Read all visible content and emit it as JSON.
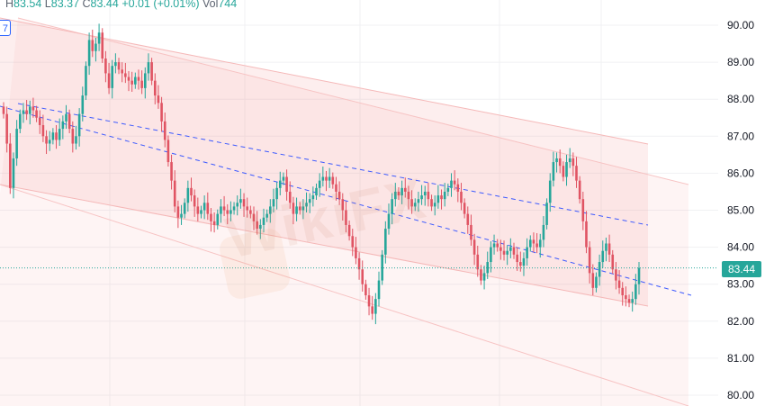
{
  "header": {
    "h_label": "H",
    "h_value": "83.54",
    "l_label": "L",
    "l_value": "83.37",
    "c_label": "C",
    "c_value": "83.44",
    "change": "+0.01 (+0.01%)",
    "vol_label": "Vol",
    "vol_value": "744"
  },
  "left_label": "7",
  "price_tag": "83.44",
  "watermark": "WikiFX",
  "colors": {
    "up": "#26a69a",
    "down": "#e05463",
    "channel_fill": "#f4a3a3",
    "trend": "#3d5afe"
  },
  "chart_data": {
    "type": "candlestick",
    "ylim": [
      79.8,
      90.5
    ],
    "yticks": [
      "80.00",
      "81.00",
      "82.00",
      "83.00",
      "84.00",
      "85.00",
      "86.00",
      "87.00",
      "88.00",
      "89.00",
      "90.00"
    ],
    "last_price": 83.44,
    "grid": true,
    "closes": [
      87.6,
      86.8,
      85.6,
      86.4,
      87.2,
      87.6,
      87.7,
      87.6,
      87.8,
      87.7,
      87.5,
      87.3,
      87.0,
      86.8,
      86.9,
      87.1,
      86.9,
      87.2,
      87.4,
      87.6,
      87.2,
      86.8,
      87.0,
      87.6,
      88.1,
      88.9,
      89.6,
      89.3,
      89.5,
      89.8,
      89.1,
      88.7,
      88.3,
      88.9,
      89.0,
      88.8,
      88.7,
      88.6,
      88.5,
      88.4,
      88.6,
      88.5,
      88.3,
      88.7,
      89.0,
      88.5,
      88.1,
      87.9,
      87.4,
      86.9,
      86.3,
      85.8,
      85.1,
      84.8,
      84.9,
      85.2,
      85.6,
      85.4,
      85.1,
      84.9,
      85.0,
      85.2,
      84.9,
      84.7,
      84.6,
      84.9,
      85.1,
      85.0,
      84.9,
      85.0,
      85.1,
      85.2,
      85.3,
      85.1,
      85.0,
      84.9,
      84.7,
      84.5,
      84.6,
      84.8,
      84.9,
      85.1,
      85.3,
      85.6,
      85.8,
      85.9,
      85.5,
      85.2,
      84.9,
      85.1,
      85.0,
      85.1,
      85.2,
      85.3,
      85.4,
      85.6,
      85.8,
      85.9,
      85.8,
      85.9,
      85.7,
      85.5,
      85.3,
      85.0,
      84.6,
      84.3,
      84.0,
      83.7,
      83.4,
      83.0,
      82.7,
      82.4,
      82.2,
      82.6,
      83.1,
      83.8,
      84.5,
      84.9,
      85.3,
      85.5,
      85.4,
      85.6,
      85.5,
      85.3,
      85.1,
      85.2,
      85.3,
      85.4,
      85.5,
      85.3,
      85.1,
      85.2,
      85.4,
      85.3,
      85.5,
      85.6,
      85.8,
      85.7,
      85.5,
      85.2,
      84.9,
      84.6,
      84.2,
      83.8,
      83.4,
      83.1,
      83.3,
      83.6,
      84.0,
      84.1,
      84.0,
      83.9,
      83.8,
      83.9,
      84.0,
      83.8,
      83.6,
      83.5,
      83.7,
      84.0,
      84.2,
      84.1,
      84.0,
      84.2,
      84.6,
      85.2,
      85.8,
      86.3,
      86.4,
      86.2,
      85.9,
      86.3,
      86.4,
      86.2,
      85.8,
      85.3,
      84.7,
      84.0,
      83.3,
      82.9,
      83.2,
      83.6,
      83.9,
      84.1,
      83.8,
      83.4,
      83.1,
      82.9,
      82.7,
      82.6,
      82.5,
      82.6,
      83.0,
      83.44
    ]
  }
}
